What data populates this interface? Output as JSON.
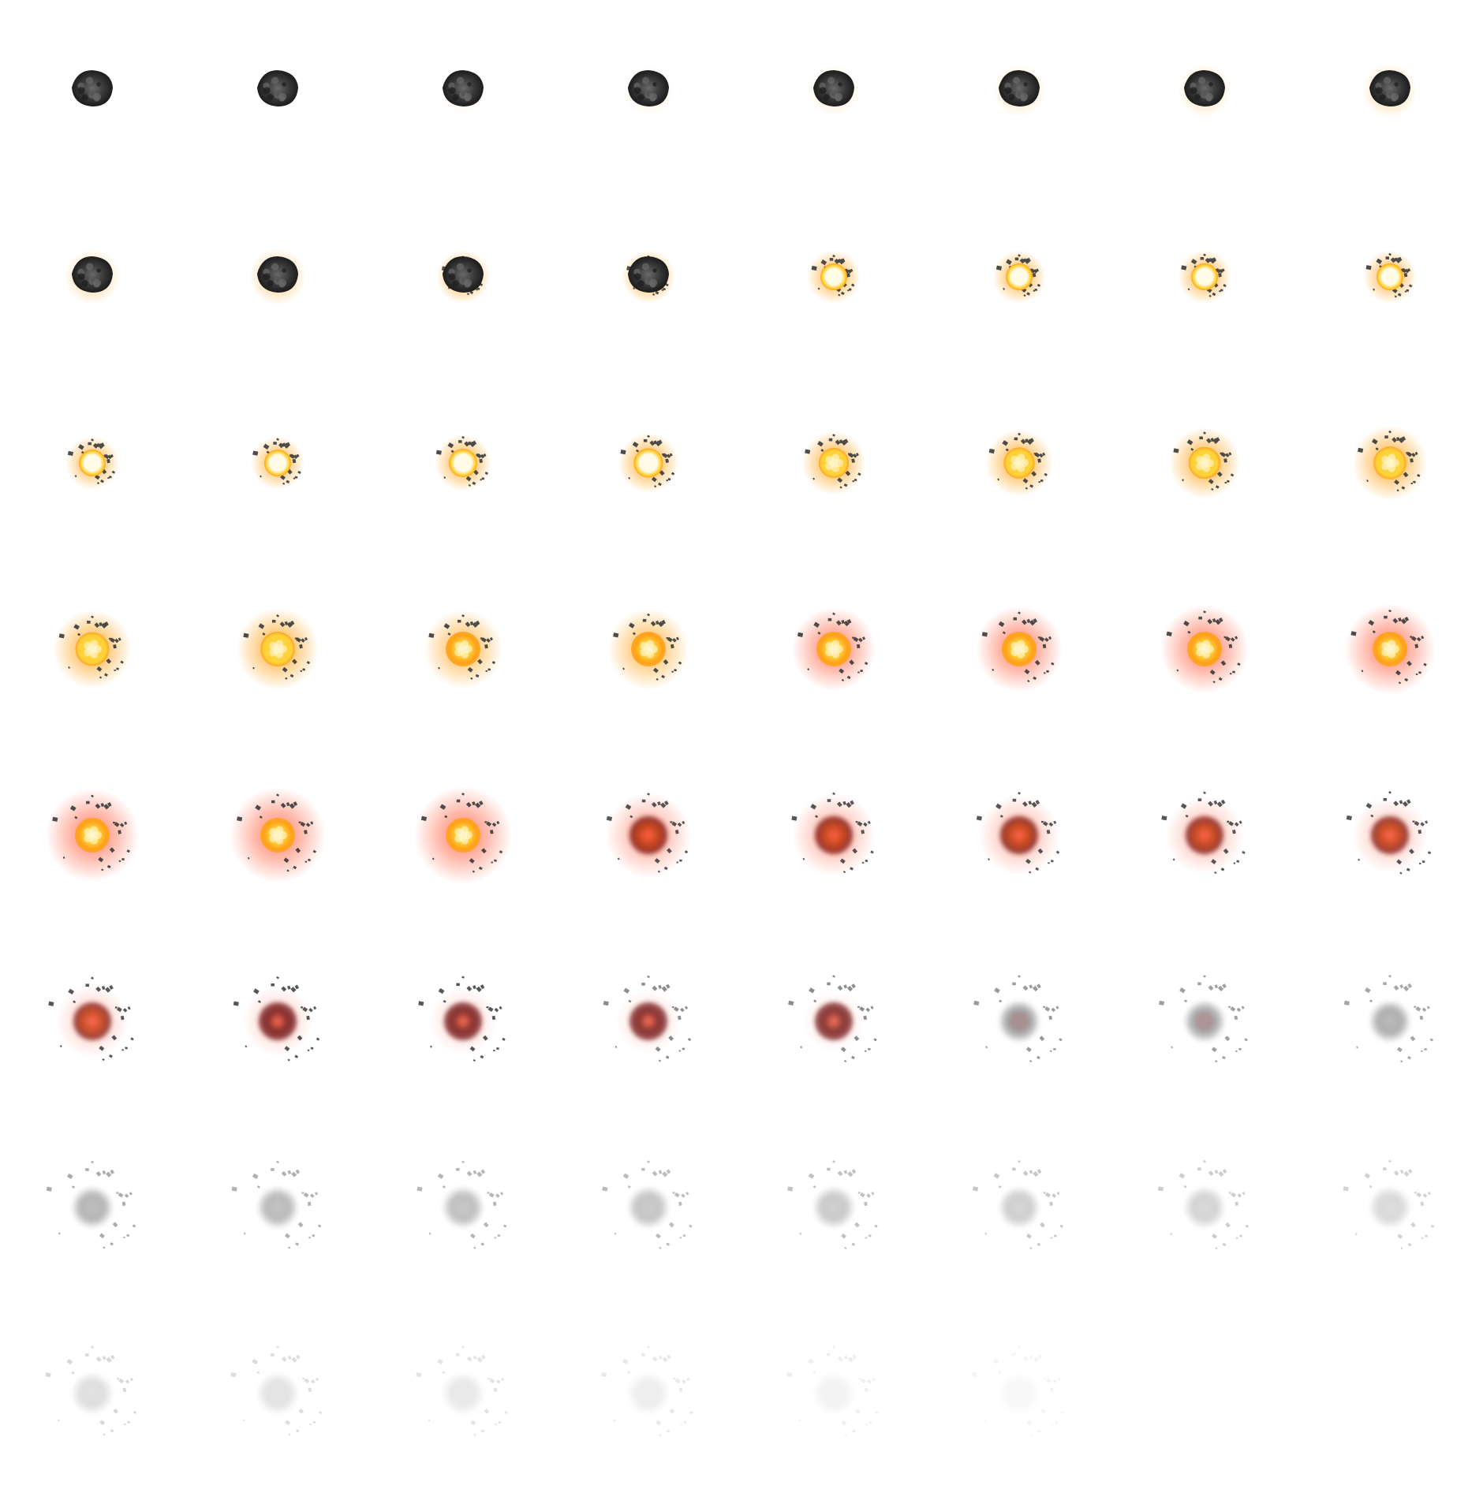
{
  "sprite_sheet": {
    "columns": 8,
    "rows": 8,
    "frame_count": 62,
    "palette": {
      "rock_dark": "#1c1c1c",
      "rock_mid": "#3a3a3a",
      "rock_light": "#6a6a6a",
      "core_white": "#fffbe6",
      "core_yellow": "#ffd23a",
      "glow_orange": "#ffa21a",
      "glow_red": "#ff5a3a",
      "ember": "#c8461e",
      "burnt": "#7a1e1e",
      "smoke": "#7a7a7a"
    },
    "phases": [
      {
        "name": "asteroid-intact",
        "frames": [
          0,
          9
        ]
      },
      {
        "name": "ignition-flash",
        "frames": [
          10,
          17
        ]
      },
      {
        "name": "fireball-yellow",
        "frames": [
          18,
          25
        ]
      },
      {
        "name": "fireball-red",
        "frames": [
          26,
          34
        ]
      },
      {
        "name": "burning-embers",
        "frames": [
          35,
          44
        ]
      },
      {
        "name": "smoke-dissipate",
        "frames": [
          45,
          61
        ]
      }
    ]
  }
}
